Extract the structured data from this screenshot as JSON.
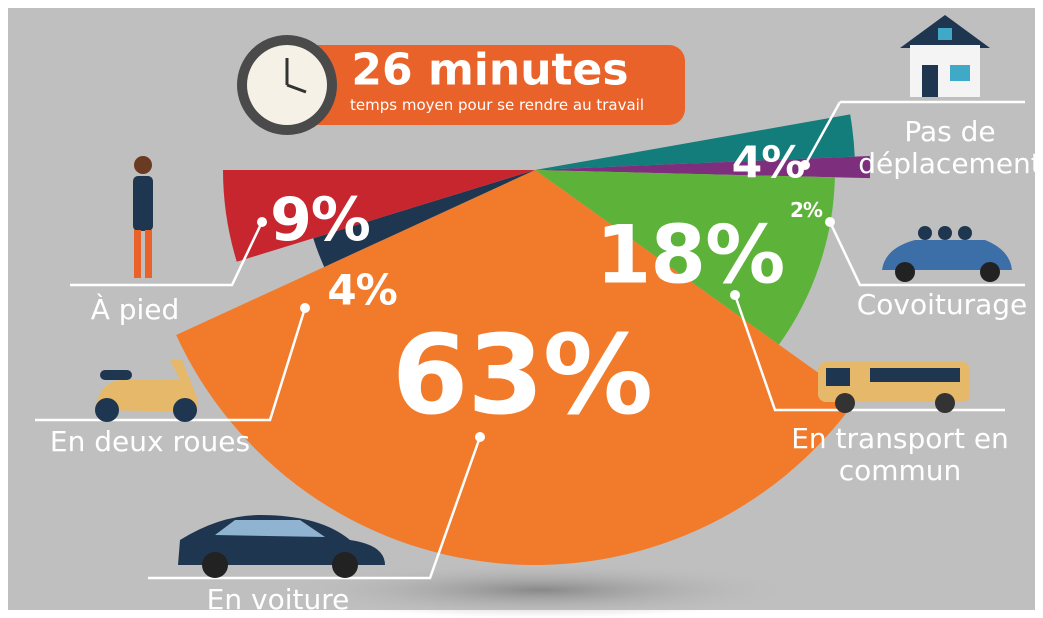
{
  "chart_data": {
    "type": "pie",
    "title": "26 minutes",
    "subtitle": "temps moyen pour se rendre au travail",
    "categories": [
      "Pas de déplacement",
      "Covoiturage",
      "En transport en commun",
      "En voiture",
      "En deux roues",
      "À pied"
    ],
    "values": [
      4,
      2,
      18,
      63,
      4,
      9
    ],
    "value_labels": [
      "4%",
      "2%",
      "18%",
      "63%",
      "4%",
      "9%"
    ],
    "colors": [
      "#137d7c",
      "#7d2e7c",
      "#5db33a",
      "#f27b2b",
      "#1f3651",
      "#c8262f"
    ]
  }
}
